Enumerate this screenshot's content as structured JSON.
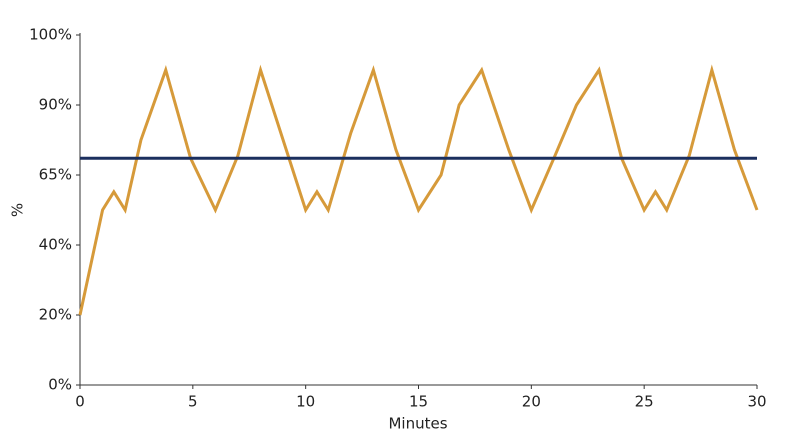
{
  "chart_data": {
    "type": "line",
    "x_label": "Minutes",
    "y_label": "%",
    "xlim": [
      0,
      30
    ],
    "xticks": [
      0,
      5,
      10,
      15,
      20,
      25,
      30
    ],
    "ylim": [
      0,
      100
    ],
    "yticks": [
      {
        "value": 0,
        "label": "0%"
      },
      {
        "value": 20,
        "label": "20%"
      },
      {
        "value": 40,
        "label": "40%"
      },
      {
        "value": 65,
        "label": "65%"
      },
      {
        "value": 90,
        "label": "90%"
      },
      {
        "value": 100,
        "label": "100%"
      }
    ],
    "series": [
      {
        "color": "#d69a3a",
        "x": [
          0,
          1,
          1.5,
          2,
          2.7,
          3.8,
          4.9,
          6,
          7,
          8,
          9,
          10,
          10.5,
          11,
          12,
          13,
          14,
          15,
          16,
          16.8,
          17.8,
          19,
          20,
          21,
          22,
          23,
          24,
          25,
          25.5,
          26,
          27,
          28,
          29,
          30
        ],
        "values": [
          20,
          52.5,
          59,
          52.5,
          77.5,
          95,
          71,
          52.5,
          72,
          95,
          77.5,
          52.5,
          59,
          52.5,
          80,
          95,
          74,
          52.5,
          65,
          90,
          95,
          74,
          52.5,
          71,
          90,
          95,
          71,
          52.5,
          59,
          52.5,
          72,
          95,
          74,
          52.5
        ]
      },
      {
        "color": "#1b2f5e",
        "x": [
          0,
          30
        ],
        "values": [
          71,
          71
        ]
      }
    ]
  }
}
